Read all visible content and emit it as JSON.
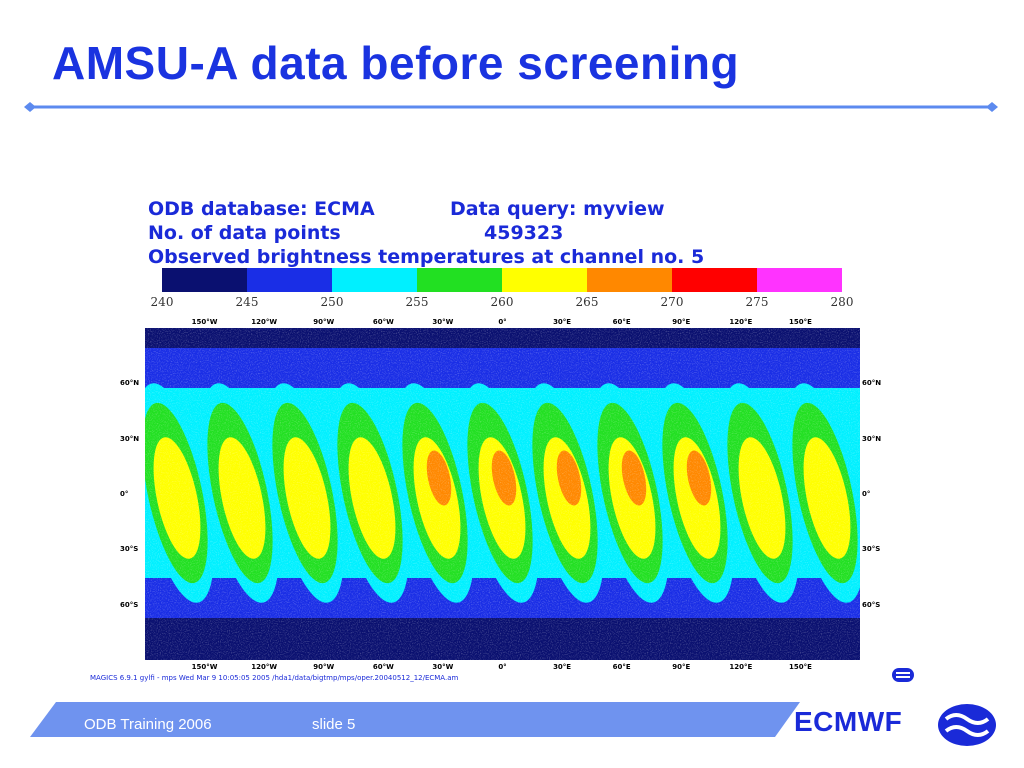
{
  "slide": {
    "title": "AMSU-A data before screening",
    "footer_left": "ODB Training 2006",
    "footer_slide": "slide 5",
    "brand": "ECMWF"
  },
  "plot": {
    "db_label": "ODB database: ECMA",
    "query_label": "Data query: myview",
    "npoints_label": "No. of data points",
    "npoints_value": "459323",
    "subtitle": "Observed brightness temperatures at channel no. 5",
    "colorbar_ticks": [
      "240",
      "245",
      "250",
      "255",
      "260",
      "265",
      "270",
      "275",
      "280"
    ],
    "colorbar_colors": [
      "#0a1070",
      "#1a2ee6",
      "#00f0ff",
      "#22e022",
      "#ffff00",
      "#ff8800",
      "#ff0000",
      "#ff33ff"
    ],
    "lon_labels": [
      "150°W",
      "120°W",
      "90°W",
      "60°W",
      "30°W",
      "0°",
      "30°E",
      "60°E",
      "90°E",
      "120°E",
      "150°E"
    ],
    "lat_labels": [
      "60°N",
      "30°N",
      "0°",
      "30°S",
      "60°S"
    ],
    "footer_note": "MAGICS 6.9.1 gylfi - mps Wed Mar  9 10:05:05 2005     /hda1/data/bigtmp/mps/oper.20040512_12/ECMA.am"
  },
  "colors": {
    "title": "#1a33e0",
    "rule": "#5c8aef",
    "footer_band": "#6f93ef",
    "brand": "#1a2ad8"
  }
}
